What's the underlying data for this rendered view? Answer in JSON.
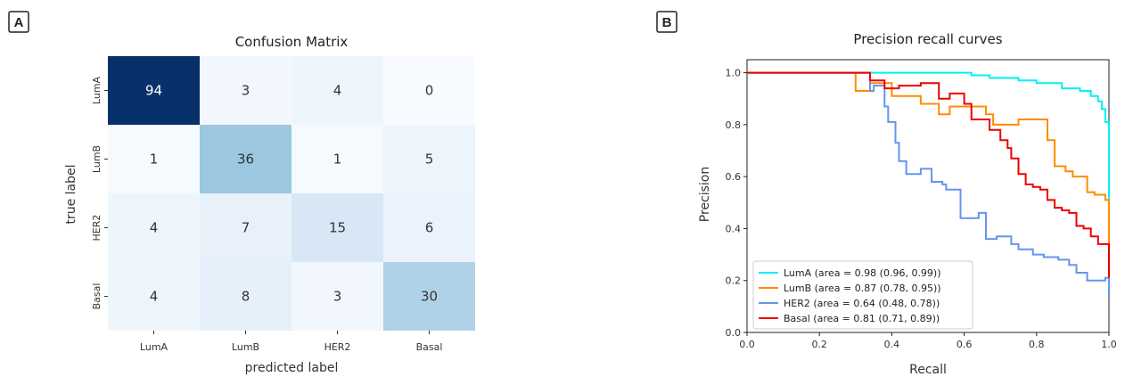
{
  "panels": {
    "a_label": "A",
    "b_label": "B"
  },
  "chart_data": [
    {
      "type": "heatmap",
      "title": "Confusion Matrix",
      "xlabel": "predicted label",
      "ylabel": "true label",
      "x_categories": [
        "LumA",
        "LumB",
        "HER2",
        "Basal"
      ],
      "y_categories": [
        "LumA",
        "LumB",
        "HER2",
        "Basal"
      ],
      "values": [
        [
          94,
          3,
          4,
          0
        ],
        [
          1,
          36,
          1,
          5
        ],
        [
          4,
          7,
          15,
          6
        ],
        [
          4,
          8,
          3,
          30
        ]
      ],
      "colormap": "Blues",
      "vmax": 94
    },
    {
      "type": "line",
      "title": "Precision recall curves",
      "xlabel": "Recall",
      "ylabel": "Precision",
      "xlim": [
        0.0,
        1.0
      ],
      "ylim": [
        0.0,
        1.05
      ],
      "xticks": [
        "0.0",
        "0.2",
        "0.4",
        "0.6",
        "0.8",
        "1.0"
      ],
      "yticks": [
        "0.0",
        "0.2",
        "0.4",
        "0.6",
        "0.8",
        "1.0"
      ],
      "legend_position": "lower-left",
      "series": [
        {
          "name": "LumA (area = 0.98 (0.96, 0.99))",
          "color": "#00f2f2",
          "points": [
            [
              0,
              1
            ],
            [
              0.33,
              1
            ],
            [
              0.33,
              1
            ],
            [
              0.62,
              1
            ],
            [
              0.62,
              0.99
            ],
            [
              0.67,
              0.99
            ],
            [
              0.67,
              0.98
            ],
            [
              0.75,
              0.98
            ],
            [
              0.75,
              0.97
            ],
            [
              0.8,
              0.97
            ],
            [
              0.8,
              0.96
            ],
            [
              0.87,
              0.96
            ],
            [
              0.87,
              0.94
            ],
            [
              0.92,
              0.94
            ],
            [
              0.92,
              0.93
            ],
            [
              0.95,
              0.93
            ],
            [
              0.95,
              0.91
            ],
            [
              0.97,
              0.91
            ],
            [
              0.97,
              0.89
            ],
            [
              0.98,
              0.89
            ],
            [
              0.98,
              0.86
            ],
            [
              0.99,
              0.86
            ],
            [
              0.99,
              0.81
            ],
            [
              1.0,
              0.81
            ],
            [
              1.0,
              0.5
            ]
          ]
        },
        {
          "name": "LumB (area = 0.87 (0.78, 0.95))",
          "color": "#ff8c00",
          "points": [
            [
              0,
              1
            ],
            [
              0.3,
              1
            ],
            [
              0.3,
              0.93
            ],
            [
              0.34,
              0.93
            ],
            [
              0.34,
              0.96
            ],
            [
              0.4,
              0.96
            ],
            [
              0.4,
              0.91
            ],
            [
              0.48,
              0.91
            ],
            [
              0.48,
              0.88
            ],
            [
              0.53,
              0.88
            ],
            [
              0.53,
              0.84
            ],
            [
              0.56,
              0.84
            ],
            [
              0.56,
              0.87
            ],
            [
              0.66,
              0.87
            ],
            [
              0.66,
              0.84
            ],
            [
              0.68,
              0.84
            ],
            [
              0.68,
              0.8
            ],
            [
              0.75,
              0.8
            ],
            [
              0.75,
              0.82
            ],
            [
              0.83,
              0.82
            ],
            [
              0.83,
              0.74
            ],
            [
              0.85,
              0.74
            ],
            [
              0.85,
              0.64
            ],
            [
              0.88,
              0.64
            ],
            [
              0.88,
              0.62
            ],
            [
              0.9,
              0.62
            ],
            [
              0.9,
              0.6
            ],
            [
              0.94,
              0.6
            ],
            [
              0.94,
              0.54
            ],
            [
              0.96,
              0.54
            ],
            [
              0.96,
              0.53
            ],
            [
              0.99,
              0.53
            ],
            [
              0.99,
              0.51
            ],
            [
              1.0,
              0.51
            ],
            [
              1.0,
              0.2
            ]
          ]
        },
        {
          "name": "HER2 (area = 0.64 (0.48, 0.78))",
          "color": "#6495ed",
          "points": [
            [
              0,
              1
            ],
            [
              0.34,
              1
            ],
            [
              0.34,
              0.93
            ],
            [
              0.35,
              0.93
            ],
            [
              0.35,
              0.95
            ],
            [
              0.38,
              0.95
            ],
            [
              0.38,
              0.87
            ],
            [
              0.39,
              0.87
            ],
            [
              0.39,
              0.81
            ],
            [
              0.41,
              0.81
            ],
            [
              0.41,
              0.73
            ],
            [
              0.42,
              0.73
            ],
            [
              0.42,
              0.66
            ],
            [
              0.44,
              0.66
            ],
            [
              0.44,
              0.61
            ],
            [
              0.48,
              0.61
            ],
            [
              0.48,
              0.63
            ],
            [
              0.51,
              0.63
            ],
            [
              0.51,
              0.58
            ],
            [
              0.54,
              0.58
            ],
            [
              0.54,
              0.57
            ],
            [
              0.55,
              0.57
            ],
            [
              0.55,
              0.55
            ],
            [
              0.59,
              0.55
            ],
            [
              0.59,
              0.44
            ],
            [
              0.64,
              0.44
            ],
            [
              0.64,
              0.46
            ],
            [
              0.66,
              0.46
            ],
            [
              0.66,
              0.36
            ],
            [
              0.69,
              0.36
            ],
            [
              0.69,
              0.37
            ],
            [
              0.73,
              0.37
            ],
            [
              0.73,
              0.34
            ],
            [
              0.75,
              0.34
            ],
            [
              0.75,
              0.32
            ],
            [
              0.79,
              0.32
            ],
            [
              0.79,
              0.3
            ],
            [
              0.82,
              0.3
            ],
            [
              0.82,
              0.29
            ],
            [
              0.86,
              0.29
            ],
            [
              0.86,
              0.28
            ],
            [
              0.89,
              0.28
            ],
            [
              0.89,
              0.26
            ],
            [
              0.91,
              0.26
            ],
            [
              0.91,
              0.23
            ],
            [
              0.94,
              0.23
            ],
            [
              0.94,
              0.2
            ],
            [
              0.99,
              0.2
            ],
            [
              0.99,
              0.21
            ],
            [
              1.0,
              0.21
            ],
            [
              1.0,
              0.14
            ]
          ]
        },
        {
          "name": "Basal (area = 0.81 (0.71, 0.89))",
          "color": "#ee0000",
          "points": [
            [
              0,
              1
            ],
            [
              0.34,
              1
            ],
            [
              0.34,
              0.97
            ],
            [
              0.38,
              0.97
            ],
            [
              0.38,
              0.94
            ],
            [
              0.42,
              0.94
            ],
            [
              0.42,
              0.95
            ],
            [
              0.48,
              0.95
            ],
            [
              0.48,
              0.96
            ],
            [
              0.53,
              0.96
            ],
            [
              0.53,
              0.9
            ],
            [
              0.56,
              0.9
            ],
            [
              0.56,
              0.92
            ],
            [
              0.6,
              0.92
            ],
            [
              0.6,
              0.88
            ],
            [
              0.62,
              0.88
            ],
            [
              0.62,
              0.82
            ],
            [
              0.67,
              0.82
            ],
            [
              0.67,
              0.78
            ],
            [
              0.7,
              0.78
            ],
            [
              0.7,
              0.74
            ],
            [
              0.72,
              0.74
            ],
            [
              0.72,
              0.71
            ],
            [
              0.73,
              0.71
            ],
            [
              0.73,
              0.67
            ],
            [
              0.75,
              0.67
            ],
            [
              0.75,
              0.61
            ],
            [
              0.77,
              0.61
            ],
            [
              0.77,
              0.57
            ],
            [
              0.79,
              0.57
            ],
            [
              0.79,
              0.56
            ],
            [
              0.81,
              0.56
            ],
            [
              0.81,
              0.55
            ],
            [
              0.83,
              0.55
            ],
            [
              0.83,
              0.51
            ],
            [
              0.85,
              0.51
            ],
            [
              0.85,
              0.48
            ],
            [
              0.87,
              0.48
            ],
            [
              0.87,
              0.47
            ],
            [
              0.89,
              0.47
            ],
            [
              0.89,
              0.46
            ],
            [
              0.91,
              0.46
            ],
            [
              0.91,
              0.41
            ],
            [
              0.93,
              0.41
            ],
            [
              0.93,
              0.4
            ],
            [
              0.95,
              0.4
            ],
            [
              0.95,
              0.37
            ],
            [
              0.97,
              0.37
            ],
            [
              0.97,
              0.34
            ],
            [
              0.99,
              0.34
            ],
            [
              0.99,
              0.34
            ],
            [
              1.0,
              0.34
            ],
            [
              1.0,
              0.21
            ]
          ]
        }
      ]
    }
  ]
}
